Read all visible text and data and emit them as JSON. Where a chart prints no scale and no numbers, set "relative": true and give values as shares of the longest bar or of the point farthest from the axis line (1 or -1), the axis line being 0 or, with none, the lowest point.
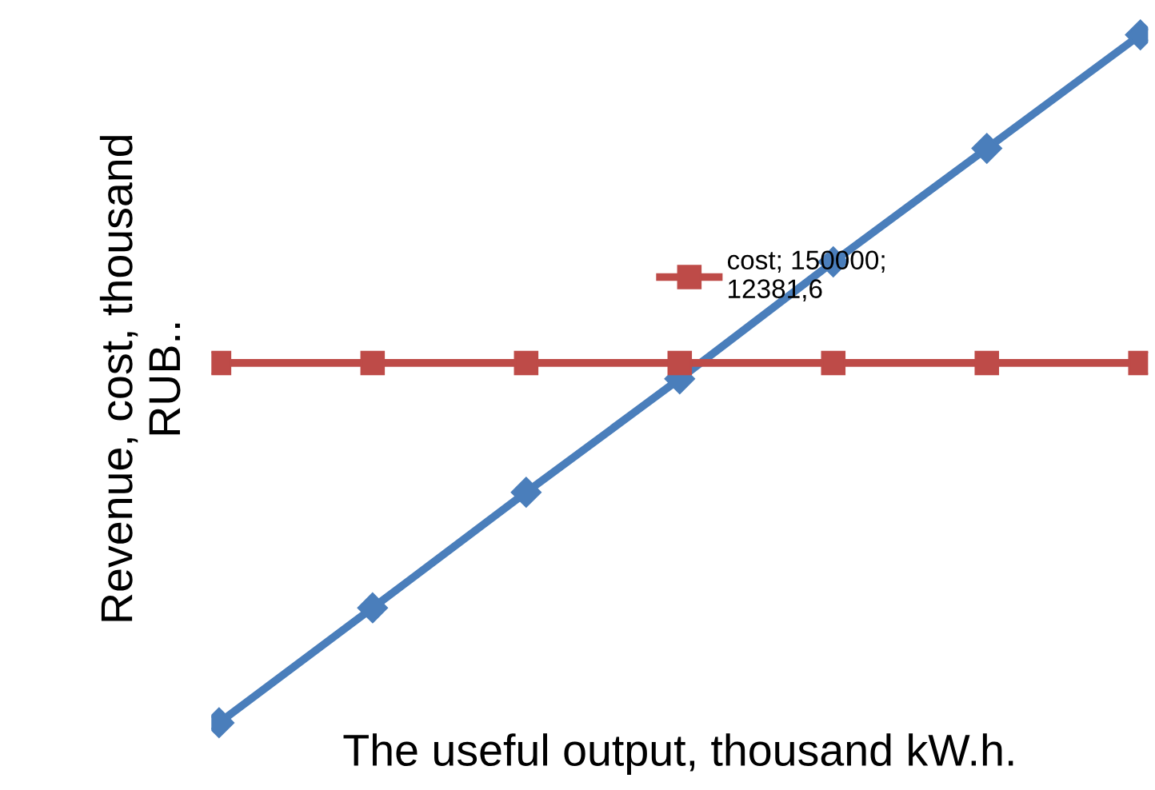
{
  "chart_data": {
    "type": "line",
    "relative": true,
    "xlabel": "The useful output, thousand kW.h.",
    "ylabel": "Revenue, cost, thousand\nRUB..",
    "categories": [
      null,
      null,
      null,
      null,
      null,
      null,
      null
    ],
    "series": [
      {
        "color": "#4a7ebb",
        "marker": "diamond",
        "values": [
          0,
          0.167,
          0.335,
          0.5,
          0.67,
          0.835,
          1
        ]
      },
      {
        "name": "cost; 150000;\n12381,6",
        "color": "#be4b48",
        "marker": "square",
        "values": [
          0.523,
          0.523,
          0.523,
          0.523,
          0.523,
          0.523,
          0.523
        ]
      }
    ],
    "grid": false,
    "legend": "center",
    "line_style": "solid"
  }
}
